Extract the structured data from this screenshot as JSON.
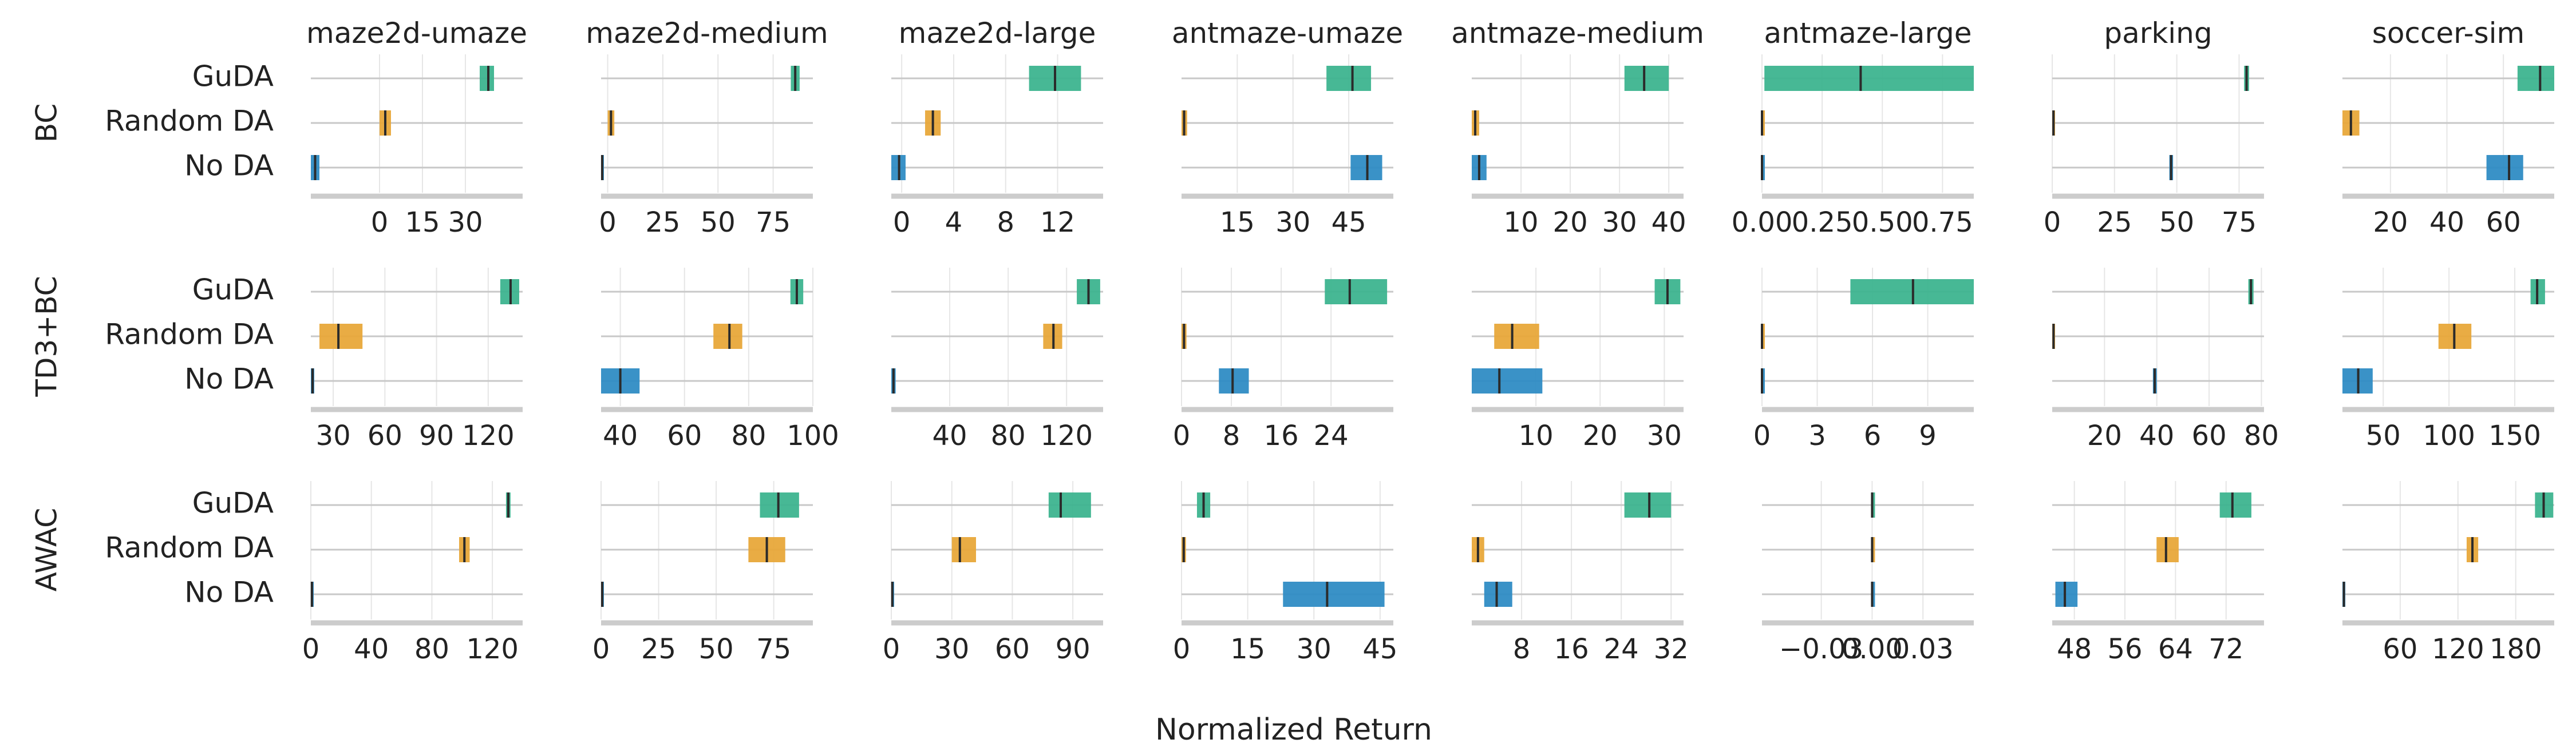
{
  "chart_data": {
    "type": "interval-bars",
    "xlabel": "Normalized Return",
    "algorithms": [
      "BC",
      "TD3+BC",
      "AWAC"
    ],
    "envs": [
      "maze2d-umaze",
      "maze2d-medium",
      "maze2d-large",
      "antmaze-umaze",
      "antmaze-medium",
      "antmaze-large",
      "parking",
      "soccer-sim"
    ],
    "methods": [
      "GuDA",
      "Random DA",
      "No DA"
    ],
    "colors": {
      "GuDA": "#3db48f",
      "Random DA": "#e8a83a",
      "No DA": "#2f8cc4"
    },
    "panels": [
      [
        {
          "xlim": [
            -24,
            50
          ],
          "ticks": [
            0,
            15,
            30
          ],
          "tick_labels": [
            "0",
            "15",
            "30"
          ],
          "bars": [
            [
              35,
              40,
              38
            ],
            [
              0,
              4,
              2
            ],
            [
              -24,
              -21,
              -22.5
            ]
          ]
        },
        {
          "xlim": [
            -3,
            93
          ],
          "ticks": [
            0,
            25,
            50,
            75
          ],
          "tick_labels": [
            "0",
            "25",
            "50",
            "75"
          ],
          "bars": [
            [
              83,
              87,
              85
            ],
            [
              0,
              3,
              1.5
            ],
            [
              -3,
              -2,
              -2.5
            ]
          ]
        },
        {
          "xlim": [
            -0.8,
            15.5
          ],
          "ticks": [
            0,
            4,
            8,
            12
          ],
          "tick_labels": [
            "0",
            "4",
            "8",
            "12"
          ],
          "bars": [
            [
              9.8,
              13.8,
              11.8
            ],
            [
              1.8,
              3.0,
              2.4
            ],
            [
              -0.8,
              0.3,
              -0.2
            ]
          ]
        },
        {
          "xlim": [
            0,
            57
          ],
          "ticks": [
            15,
            30,
            45
          ],
          "tick_labels": [
            "15",
            "30",
            "45"
          ],
          "bars": [
            [
              39,
              51,
              46
            ],
            [
              0,
              1.5,
              0.7
            ],
            [
              45.5,
              54,
              50
            ]
          ]
        },
        {
          "xlim": [
            0,
            43
          ],
          "ticks": [
            10,
            20,
            30,
            40
          ],
          "tick_labels": [
            "10",
            "20",
            "30",
            "40"
          ],
          "bars": [
            [
              31,
              40,
              35
            ],
            [
              0,
              1.5,
              0.7
            ],
            [
              0,
              3,
              1.5
            ]
          ]
        },
        {
          "xlim": [
            0,
            0.88
          ],
          "ticks": [
            0,
            0.25,
            0.5,
            0.75
          ],
          "tick_labels": [
            "0.00",
            "0.25",
            "0.50",
            "0.75"
          ],
          "bars": [
            [
              0.01,
              0.88,
              0.41
            ],
            [
              0,
              0,
              0
            ],
            [
              0,
              0,
              0
            ]
          ]
        },
        {
          "xlim": [
            0,
            85
          ],
          "ticks": [
            0,
            25,
            50,
            75
          ],
          "tick_labels": [
            "0",
            "25",
            "50",
            "75"
          ],
          "bars": [
            [
              77,
              79,
              78
            ],
            [
              0,
              1,
              0.5
            ],
            [
              47,
              48.5,
              47.7
            ]
          ]
        },
        {
          "xlim": [
            3,
            78
          ],
          "ticks": [
            20,
            40,
            60
          ],
          "tick_labels": [
            "20",
            "40",
            "60"
          ],
          "bars": [
            [
              65,
              78,
              73
            ],
            [
              3,
              9,
              6
            ],
            [
              54,
              67,
              62
            ]
          ]
        }
      ],
      [
        {
          "xlim": [
            17,
            140
          ],
          "ticks": [
            30,
            60,
            90,
            120
          ],
          "tick_labels": [
            "30",
            "60",
            "90",
            "120"
          ],
          "bars": [
            [
              127,
              138,
              133
            ],
            [
              22,
              47,
              33
            ],
            [
              17,
              19,
              18
            ]
          ]
        },
        {
          "xlim": [
            34,
            100
          ],
          "ticks": [
            40,
            60,
            80,
            100
          ],
          "tick_labels": [
            "40",
            "60",
            "80",
            "100"
          ],
          "bars": [
            [
              93,
              97,
              95
            ],
            [
              69,
              78,
              74
            ],
            [
              34,
              46,
              40
            ]
          ]
        },
        {
          "xlim": [
            0,
            145
          ],
          "ticks": [
            40,
            80,
            120
          ],
          "tick_labels": [
            "40",
            "80",
            "120"
          ],
          "bars": [
            [
              127,
              143,
              135
            ],
            [
              104,
              117,
              111
            ],
            [
              0,
              3,
              1.5
            ]
          ]
        },
        {
          "xlim": [
            0,
            34
          ],
          "ticks": [
            0,
            8,
            16,
            24
          ],
          "tick_labels": [
            "0",
            "8",
            "16",
            "24"
          ],
          "bars": [
            [
              23,
              33,
              27
            ],
            [
              0,
              0.8,
              0.4
            ],
            [
              6,
              10.8,
              8.2
            ]
          ]
        },
        {
          "xlim": [
            0,
            33
          ],
          "ticks": [
            10,
            20,
            30
          ],
          "tick_labels": [
            "10",
            "20",
            "30"
          ],
          "bars": [
            [
              28.5,
              32.5,
              30.5
            ],
            [
              3.5,
              10.5,
              6.3
            ],
            [
              0,
              11,
              4.3
            ]
          ]
        },
        {
          "xlim": [
            0,
            11.5
          ],
          "ticks": [
            0,
            3,
            6,
            9
          ],
          "tick_labels": [
            "0",
            "3",
            "6",
            "9"
          ],
          "bars": [
            [
              4.8,
              11.5,
              8.2
            ],
            [
              0,
              0,
              0
            ],
            [
              0,
              0,
              0
            ]
          ]
        },
        {
          "xlim": [
            0,
            81
          ],
          "ticks": [
            20,
            40,
            60,
            80
          ],
          "tick_labels": [
            "20",
            "40",
            "60",
            "80"
          ],
          "bars": [
            [
              75,
              77,
              76
            ],
            [
              0,
              1,
              0.5
            ],
            [
              38.5,
              40,
              39.2
            ]
          ]
        },
        {
          "xlim": [
            19,
            180
          ],
          "ticks": [
            50,
            100,
            150
          ],
          "tick_labels": [
            "50",
            "100",
            "150"
          ],
          "bars": [
            [
              162,
              173,
              167
            ],
            [
              92,
              117,
              104
            ],
            [
              19,
              42,
              31
            ]
          ]
        }
      ],
      [
        {
          "xlim": [
            0,
            140
          ],
          "ticks": [
            0,
            40,
            80,
            120
          ],
          "tick_labels": [
            "0",
            "40",
            "80",
            "120"
          ],
          "bars": [
            [
              129,
              132,
              130.5
            ],
            [
              98,
              105,
              101.5
            ],
            [
              0,
              1.5,
              0.7
            ]
          ]
        },
        {
          "xlim": [
            0,
            92
          ],
          "ticks": [
            0,
            25,
            50,
            75
          ],
          "tick_labels": [
            "0",
            "25",
            "50",
            "75"
          ],
          "bars": [
            [
              69,
              86,
              77
            ],
            [
              64,
              80,
              72
            ],
            [
              0,
              1,
              0.5
            ]
          ]
        },
        {
          "xlim": [
            0,
            105
          ],
          "ticks": [
            0,
            30,
            60,
            90
          ],
          "tick_labels": [
            "0",
            "30",
            "60",
            "90"
          ],
          "bars": [
            [
              78,
              99,
              84
            ],
            [
              30,
              42,
              34
            ],
            [
              0,
              1,
              0.5
            ]
          ]
        },
        {
          "xlim": [
            0,
            48
          ],
          "ticks": [
            0,
            15,
            30,
            45
          ],
          "tick_labels": [
            "0",
            "15",
            "30",
            "45"
          ],
          "bars": [
            [
              3.5,
              6.5,
              5
            ],
            [
              0,
              1,
              0.5
            ],
            [
              23,
              46,
              33
            ]
          ]
        },
        {
          "xlim": [
            0,
            34
          ],
          "ticks": [
            8,
            16,
            24,
            32
          ],
          "tick_labels": [
            "8",
            "16",
            "24",
            "32"
          ],
          "bars": [
            [
              24.5,
              32,
              28.5
            ],
            [
              0,
              2,
              1
            ],
            [
              2,
              6.5,
              4
            ]
          ]
        },
        {
          "xlim": [
            -0.065,
            0.06
          ],
          "ticks": [
            -0.03,
            0,
            0.03
          ],
          "tick_labels": [
            "−0.03",
            "0.00",
            "0.03"
          ],
          "bars": [
            [
              0,
              0,
              0
            ],
            [
              0,
              0,
              0
            ],
            [
              0,
              0,
              0
            ]
          ]
        },
        {
          "xlim": [
            44.5,
            78
          ],
          "ticks": [
            48,
            56,
            64,
            72
          ],
          "tick_labels": [
            "48",
            "56",
            "64",
            "72"
          ],
          "bars": [
            [
              71,
              76,
              73
            ],
            [
              61,
              64.5,
              62.5
            ],
            [
              45,
              48.5,
              46.5
            ]
          ]
        },
        {
          "xlim": [
            0,
            220
          ],
          "ticks": [
            60,
            120,
            180
          ],
          "tick_labels": [
            "60",
            "120",
            "180"
          ],
          "bars": [
            [
              200,
              219,
              209
            ],
            [
              129,
              141,
              135
            ],
            [
              0,
              3,
              1.5
            ]
          ]
        }
      ]
    ]
  }
}
